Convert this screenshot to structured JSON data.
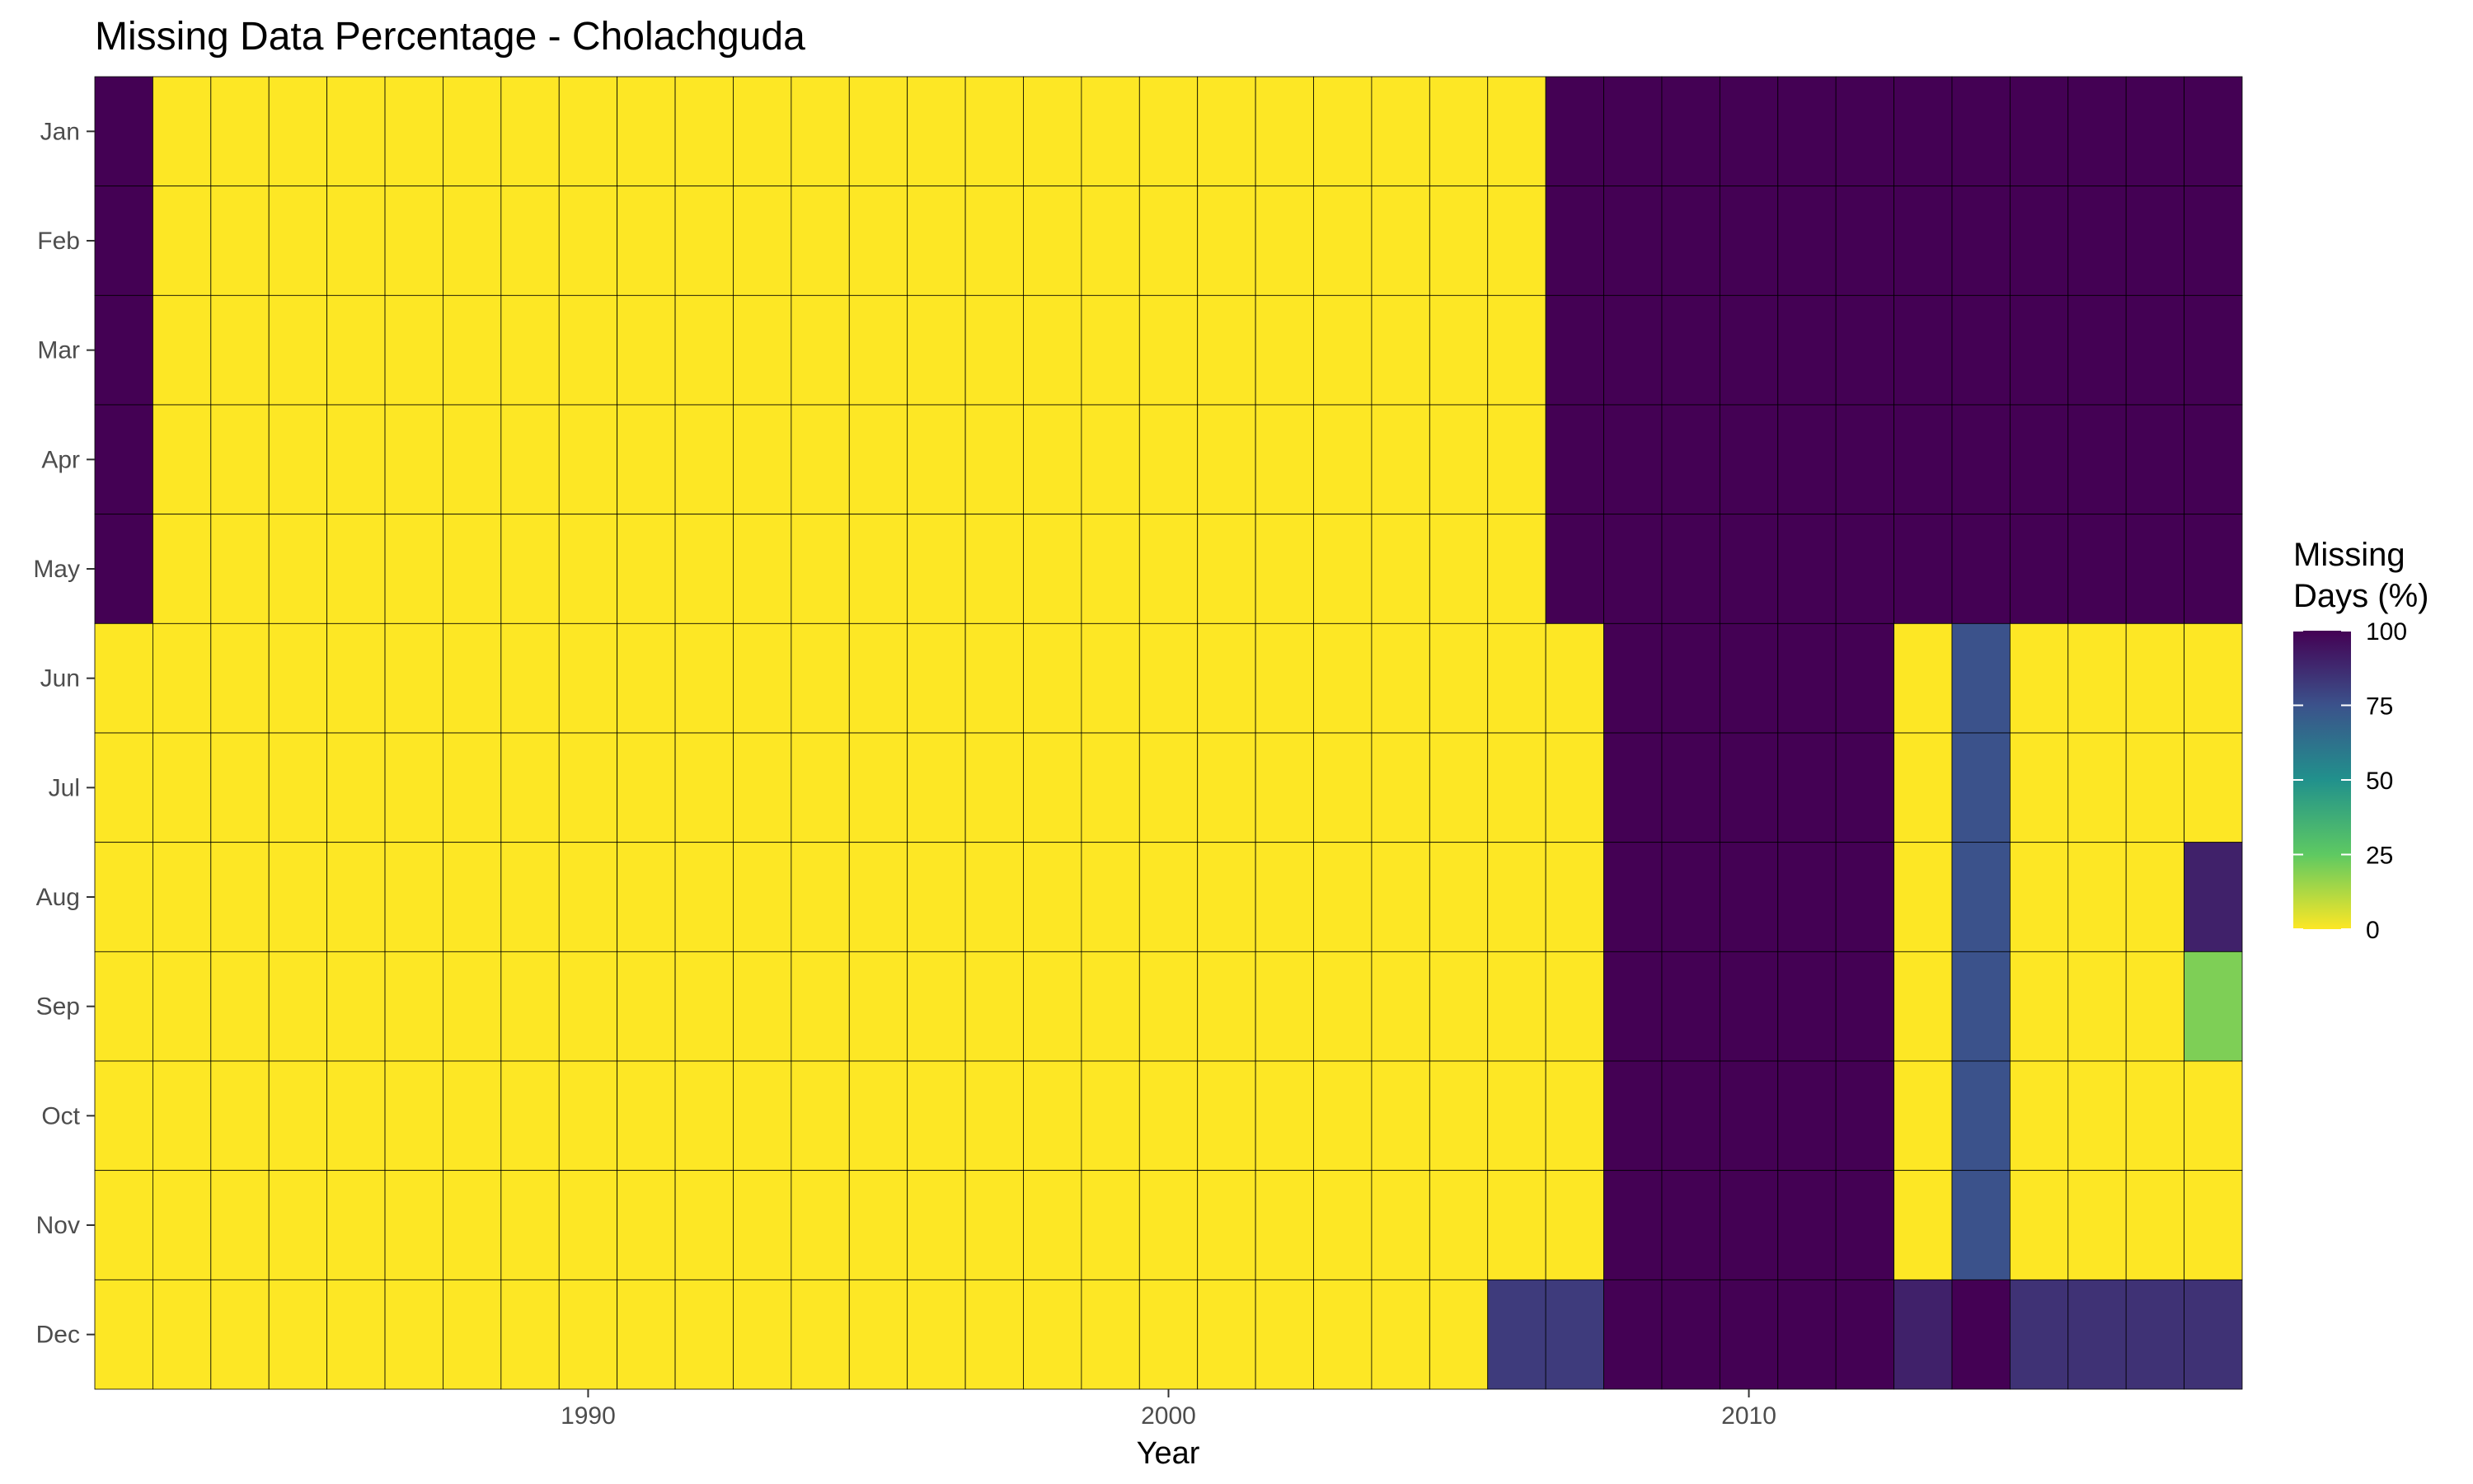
{
  "chart_data": {
    "type": "heatmap",
    "title": "Missing Data Percentage - Cholachguda",
    "xlabel": "Year",
    "ylabel": "",
    "x": [
      1982,
      1983,
      1984,
      1985,
      1986,
      1987,
      1988,
      1989,
      1990,
      1991,
      1992,
      1993,
      1994,
      1995,
      1996,
      1997,
      1998,
      1999,
      2000,
      2001,
      2002,
      2003,
      2004,
      2005,
      2006,
      2007,
      2008,
      2009,
      2010,
      2011,
      2012,
      2013,
      2014,
      2015,
      2016,
      2017,
      2018
    ],
    "x_ticks": [
      1990,
      2000,
      2010
    ],
    "y_categories": [
      "Jan",
      "Feb",
      "Mar",
      "Apr",
      "May",
      "Jun",
      "Jul",
      "Aug",
      "Sep",
      "Oct",
      "Nov",
      "Dec"
    ],
    "xlim": [
      1981.5,
      2018.5
    ],
    "colorscale": "viridis-reversed",
    "color_range": [
      0,
      100
    ],
    "legend": {
      "title_lines": [
        "Missing",
        "Days (%)"
      ],
      "ticks": [
        0,
        25,
        50,
        75,
        100
      ],
      "placement": "right"
    },
    "values": [
      [
        100,
        0,
        0,
        0,
        0,
        0,
        0,
        0,
        0,
        0,
        0,
        0,
        0,
        0,
        0,
        0,
        0,
        0,
        0,
        0,
        0,
        0,
        0,
        0,
        0,
        100,
        100,
        100,
        100,
        100,
        100,
        100,
        100,
        100,
        100,
        100,
        100
      ],
      [
        100,
        0,
        0,
        0,
        0,
        0,
        0,
        0,
        0,
        0,
        0,
        0,
        0,
        0,
        0,
        0,
        0,
        0,
        0,
        0,
        0,
        0,
        0,
        0,
        0,
        100,
        100,
        100,
        100,
        100,
        100,
        100,
        100,
        100,
        100,
        100,
        100
      ],
      [
        100,
        0,
        0,
        0,
        0,
        0,
        0,
        0,
        0,
        0,
        0,
        0,
        0,
        0,
        0,
        0,
        0,
        0,
        0,
        0,
        0,
        0,
        0,
        0,
        0,
        100,
        100,
        100,
        100,
        100,
        100,
        100,
        100,
        100,
        100,
        100,
        100
      ],
      [
        100,
        0,
        0,
        0,
        0,
        0,
        0,
        0,
        0,
        0,
        0,
        0,
        0,
        0,
        0,
        0,
        0,
        0,
        0,
        0,
        0,
        0,
        0,
        0,
        0,
        100,
        100,
        100,
        100,
        100,
        100,
        100,
        100,
        100,
        100,
        100,
        100
      ],
      [
        100,
        0,
        0,
        0,
        0,
        0,
        0,
        0,
        0,
        0,
        0,
        0,
        0,
        0,
        0,
        0,
        0,
        0,
        0,
        0,
        0,
        0,
        0,
        0,
        0,
        100,
        100,
        100,
        100,
        100,
        100,
        100,
        100,
        100,
        100,
        100,
        100
      ],
      [
        0,
        0,
        0,
        0,
        0,
        0,
        0,
        0,
        0,
        0,
        0,
        0,
        0,
        0,
        0,
        0,
        0,
        0,
        0,
        0,
        0,
        0,
        0,
        0,
        0,
        0,
        100,
        100,
        100,
        100,
        100,
        0,
        75,
        0,
        0,
        0,
        0
      ],
      [
        0,
        0,
        0,
        0,
        0,
        0,
        0,
        0,
        0,
        0,
        0,
        0,
        0,
        0,
        0,
        0,
        0,
        0,
        0,
        0,
        0,
        0,
        0,
        0,
        0,
        0,
        100,
        100,
        100,
        100,
        100,
        0,
        75,
        0,
        0,
        0,
        0
      ],
      [
        0,
        0,
        0,
        0,
        0,
        0,
        0,
        0,
        0,
        0,
        0,
        0,
        0,
        0,
        0,
        0,
        0,
        0,
        0,
        0,
        0,
        0,
        0,
        0,
        0,
        0,
        100,
        100,
        100,
        100,
        100,
        0,
        75,
        0,
        0,
        0,
        90
      ],
      [
        0,
        0,
        0,
        0,
        0,
        0,
        0,
        0,
        0,
        0,
        0,
        0,
        0,
        0,
        0,
        0,
        0,
        0,
        0,
        0,
        0,
        0,
        0,
        0,
        0,
        0,
        100,
        100,
        100,
        100,
        100,
        0,
        75,
        0,
        0,
        0,
        20
      ],
      [
        0,
        0,
        0,
        0,
        0,
        0,
        0,
        0,
        0,
        0,
        0,
        0,
        0,
        0,
        0,
        0,
        0,
        0,
        0,
        0,
        0,
        0,
        0,
        0,
        0,
        0,
        100,
        100,
        100,
        100,
        100,
        0,
        75,
        0,
        0,
        0,
        0
      ],
      [
        0,
        0,
        0,
        0,
        0,
        0,
        0,
        0,
        0,
        0,
        0,
        0,
        0,
        0,
        0,
        0,
        0,
        0,
        0,
        0,
        0,
        0,
        0,
        0,
        0,
        0,
        100,
        100,
        100,
        100,
        100,
        0,
        75,
        0,
        0,
        0,
        0
      ],
      [
        0,
        0,
        0,
        0,
        0,
        0,
        0,
        0,
        0,
        0,
        0,
        0,
        0,
        0,
        0,
        0,
        0,
        0,
        0,
        0,
        0,
        0,
        0,
        0,
        82,
        82,
        100,
        100,
        100,
        100,
        100,
        90,
        100,
        85,
        85,
        85,
        85
      ]
    ]
  }
}
